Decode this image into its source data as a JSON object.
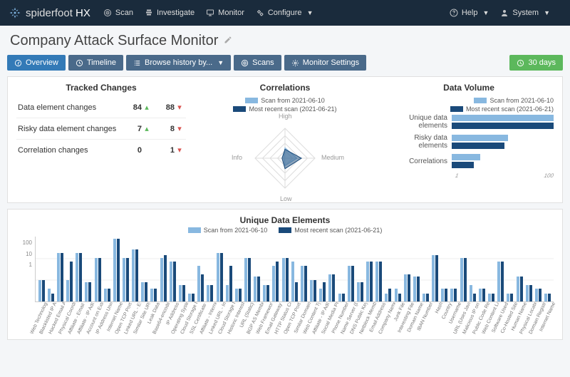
{
  "colors": {
    "light": "#88b8e0",
    "dark": "#1a4a7a",
    "green": "#5cb85c",
    "red": "#d9534f"
  },
  "nav": {
    "brand_primary": "spiderfoot",
    "brand_secondary": "HX",
    "items": [
      {
        "icon": "target",
        "label": "Scan"
      },
      {
        "icon": "search",
        "label": "Investigate"
      },
      {
        "icon": "monitor",
        "label": "Monitor"
      },
      {
        "icon": "cogs",
        "label": "Configure",
        "caret": true
      }
    ],
    "right": [
      {
        "icon": "help",
        "label": "Help",
        "caret": true
      },
      {
        "icon": "user",
        "label": "System",
        "caret": true
      }
    ]
  },
  "page": {
    "title": "Company Attack Surface Monitor"
  },
  "tabs": {
    "items": [
      {
        "icon": "dash",
        "label": "Overview",
        "active": true
      },
      {
        "icon": "clock",
        "label": "Timeline"
      },
      {
        "icon": "list",
        "label": "Browse history by...",
        "caret": true
      },
      {
        "icon": "target",
        "label": "Scans"
      },
      {
        "icon": "cog",
        "label": "Monitor Settings"
      }
    ],
    "days_btn": "30 days"
  },
  "tracked": {
    "title": "Tracked Changes",
    "rows": [
      {
        "label": "Data element changes",
        "up": 84,
        "down": 88
      },
      {
        "label": "Risky data element changes",
        "up": 7,
        "down": 8
      },
      {
        "label": "Correlation changes",
        "up": 0,
        "down": 1,
        "up_neutral": true
      }
    ]
  },
  "correlations": {
    "title": "Correlations",
    "legend": [
      "Scan from 2021-06-10",
      "Most recent scan (2021-06-21)"
    ],
    "axes": {
      "top": "High",
      "right": "Medium",
      "bottom": "Low",
      "left": "Info"
    },
    "series": {
      "light": {
        "high": 0.35,
        "medium": 0.4,
        "low": 0.25,
        "info": 0.05
      },
      "dark": {
        "high": 0.3,
        "medium": 0.55,
        "low": 0.35,
        "info": 0.1
      }
    }
  },
  "volume": {
    "title": "Data Volume",
    "legend": [
      "Scan from 2021-06-10",
      "Most recent scan (2021-06-21)"
    ],
    "rows": [
      {
        "label": "Unique data elements",
        "light": 100,
        "dark": 100
      },
      {
        "label": "Risky data elements",
        "light": 55,
        "dark": 52
      },
      {
        "label": "Correlations",
        "light": 28,
        "dark": 22
      }
    ],
    "xaxis": [
      "1",
      "100"
    ]
  },
  "ude": {
    "title": "Unique Data Elements",
    "legend": [
      "Scan from 2021-06-10",
      "Most recent scan (2021-06-21)"
    ],
    "yaxis": [
      "100",
      "10",
      "1"
    ],
    "log_max": 200,
    "items": [
      {
        "label": "Web Technology",
        "light": 6,
        "dark": 6
      },
      {
        "label": "Blacklisted IP Address",
        "light": 3,
        "dark": 2
      },
      {
        "label": "Hacked Email Address",
        "light": 60,
        "dark": 60
      },
      {
        "label": "Physical Coordinates",
        "light": 6,
        "dark": 30
      },
      {
        "label": "Affiliate - Email Address",
        "light": 60,
        "dark": 60
      },
      {
        "label": "Affiliate - IP Address",
        "light": 5,
        "dark": 5
      },
      {
        "label": "Account on External Site",
        "light": 40,
        "dark": 40
      },
      {
        "label": "IP Address Unresp.",
        "light": 3,
        "dark": 3
      },
      {
        "label": "Internet Name",
        "light": 200,
        "dark": 200
      },
      {
        "label": "Open TCP Port",
        "light": 40,
        "dark": 40
      },
      {
        "label": "Linked URL - External",
        "light": 80,
        "dark": 80
      },
      {
        "label": "Similar Site URL",
        "light": 5,
        "dark": 5
      },
      {
        "label": "Leak Data",
        "light": 3,
        "dark": 3
      },
      {
        "label": "Base64-encoded Data",
        "light": 40,
        "dark": 50
      },
      {
        "label": "IP Address",
        "light": 30,
        "dark": 30
      },
      {
        "label": "Operating System",
        "light": 4,
        "dark": 4
      },
      {
        "label": "Cloud Storage Bucket Open",
        "light": 2,
        "dark": 2
      },
      {
        "label": "SSL Certificate - Raw",
        "light": 20,
        "dark": 10
      },
      {
        "label": "Affiliate - Internet Name",
        "light": 4,
        "dark": 4
      },
      {
        "label": "Linked URL - Internal",
        "light": 60,
        "dark": 60
      },
      {
        "label": "Cloud Storage Bucket",
        "light": 4,
        "dark": 20
      },
      {
        "label": "Historic Interest File",
        "light": 3,
        "dark": 3
      },
      {
        "label": "URL (Static)",
        "light": 40,
        "dark": 40
      },
      {
        "label": "BGP AS Membership",
        "light": 8,
        "dark": 8
      },
      {
        "label": "Web Framework",
        "light": 4,
        "dark": 4
      },
      {
        "label": "Email Gateway (DNS MX)",
        "light": 20,
        "dark": 30
      },
      {
        "label": "HTTP Status Code",
        "light": 40,
        "dark": 40
      },
      {
        "label": "Open TCP Port Banner",
        "light": 30,
        "dark": 5
      },
      {
        "label": "Similar Domain",
        "light": 20,
        "dark": 20
      },
      {
        "label": "Web Content Type",
        "light": 6,
        "dark": 6
      },
      {
        "label": "Affiliate - IP Address",
        "light": 3,
        "dark": 5
      },
      {
        "label": "Social Media Presence",
        "light": 10,
        "dark": 10
      },
      {
        "label": "Phone Number",
        "light": 2,
        "dark": 2
      },
      {
        "label": "Name Server (DNS NS Re...",
        "light": 20,
        "dark": 20
      },
      {
        "label": "DNS Public Key",
        "light": 5,
        "dark": 5
      },
      {
        "label": "Netblock Membership",
        "light": 30,
        "dark": 30
      },
      {
        "label": "Email Address",
        "light": 30,
        "dark": 30
      },
      {
        "label": "Company Name",
        "light": 2,
        "dark": 3
      },
      {
        "label": "Junk File",
        "light": 3,
        "dark": 2
      },
      {
        "label": "Interesting File",
        "light": 10,
        "dark": 10
      },
      {
        "label": "Domain Name",
        "light": 8,
        "dark": 8
      },
      {
        "label": "IBAN Number",
        "light": 2,
        "dark": 2
      },
      {
        "label": "Hash",
        "light": 50,
        "dark": 50
      },
      {
        "label": "Country",
        "light": 3,
        "dark": 3
      },
      {
        "label": "Username",
        "light": 3,
        "dark": 3
      },
      {
        "label": "URL (Uses Javascript)",
        "light": 40,
        "dark": 40
      },
      {
        "label": "Malicious IP on Same S...",
        "light": 4,
        "dark": 2
      },
      {
        "label": "Public Code Repository",
        "light": 3,
        "dark": 3
      },
      {
        "label": "Web Content Language",
        "light": 2,
        "dark": 2
      },
      {
        "label": "Software Used",
        "light": 30,
        "dark": 30
      },
      {
        "label": "Co-Hosted Site",
        "light": 2,
        "dark": 2
      },
      {
        "label": "Human Name",
        "light": 8,
        "dark": 8
      },
      {
        "label": "Physical Location",
        "light": 4,
        "dark": 4
      },
      {
        "label": "Domain Registrar",
        "light": 3,
        "dark": 3
      },
      {
        "label": "Internet Name",
        "light": 2,
        "dark": 2
      }
    ]
  }
}
